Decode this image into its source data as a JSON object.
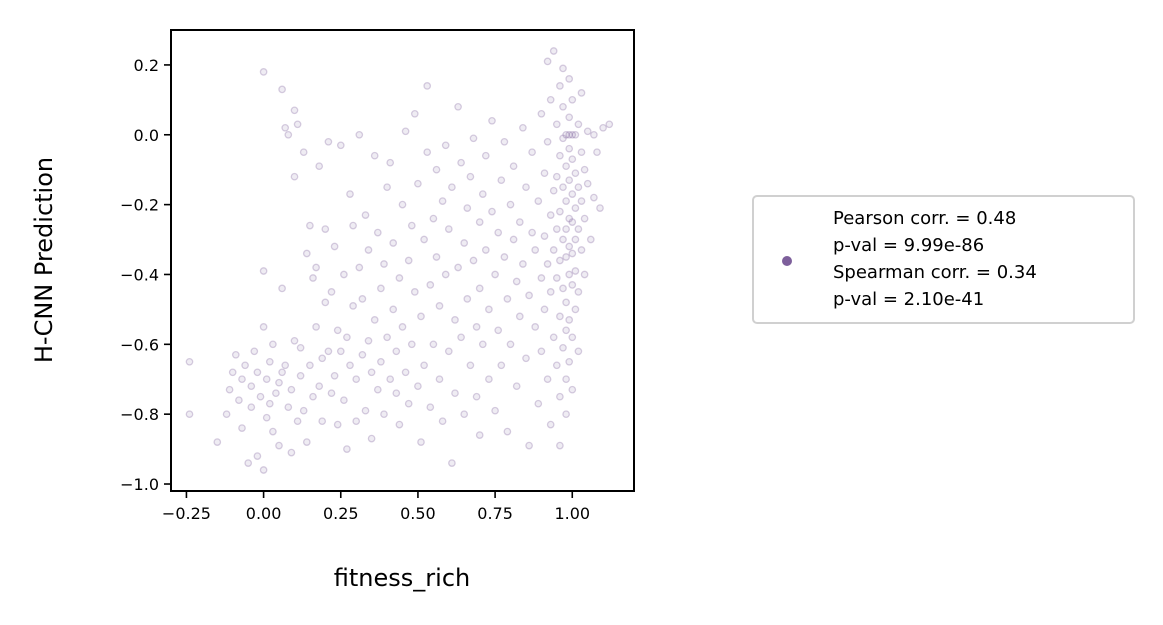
{
  "chart_data": {
    "type": "scatter",
    "title": "",
    "xlabel": "fitness_rich",
    "ylabel": "H-CNN Prediction",
    "xlim": [
      -0.3,
      1.2
    ],
    "ylim": [
      -1.02,
      0.3
    ],
    "xticks": [
      -0.25,
      0.0,
      0.25,
      0.5,
      0.75,
      1.0
    ],
    "xtick_labels": [
      "−0.25",
      "0.00",
      "0.25",
      "0.50",
      "0.75",
      "1.00"
    ],
    "yticks": [
      -1.0,
      -0.8,
      -0.6,
      -0.4,
      -0.2,
      0.0,
      0.2
    ],
    "ytick_labels": [
      "−1.0",
      "−0.8",
      "−0.6",
      "−0.4",
      "−0.2",
      "0.0",
      "0.2"
    ],
    "grid": false,
    "legend": {
      "placement": "right",
      "lines": [
        "Pearson corr. = 0.48",
        "p-val = 9.99e-86",
        "Spearman corr. = 0.34",
        "p-val = 2.10e-41"
      ]
    },
    "marker_color": "#7d5f9b",
    "marker_alpha": 0.2,
    "series": [
      {
        "points": [
          [
            -0.24,
            -0.65
          ],
          [
            -0.24,
            -0.8
          ],
          [
            -0.15,
            -0.88
          ],
          [
            -0.12,
            -0.8
          ],
          [
            -0.11,
            -0.73
          ],
          [
            -0.1,
            -0.68
          ],
          [
            -0.09,
            -0.63
          ],
          [
            -0.08,
            -0.76
          ],
          [
            -0.07,
            -0.7
          ],
          [
            -0.07,
            -0.84
          ],
          [
            -0.06,
            -0.66
          ],
          [
            -0.05,
            -0.94
          ],
          [
            -0.04,
            -0.72
          ],
          [
            -0.04,
            -0.78
          ],
          [
            -0.03,
            -0.62
          ],
          [
            -0.02,
            -0.68
          ],
          [
            -0.02,
            -0.92
          ],
          [
            -0.01,
            -0.75
          ],
          [
            0.0,
            -0.96
          ],
          [
            0.0,
            -0.55
          ],
          [
            0.0,
            -0.39
          ],
          [
            0.0,
            0.18
          ],
          [
            0.01,
            -0.81
          ],
          [
            0.01,
            -0.7
          ],
          [
            0.02,
            -0.65
          ],
          [
            0.02,
            -0.77
          ],
          [
            0.03,
            -0.85
          ],
          [
            0.03,
            -0.6
          ],
          [
            0.04,
            -0.74
          ],
          [
            0.05,
            -0.71
          ],
          [
            0.05,
            -0.89
          ],
          [
            0.06,
            -0.68
          ],
          [
            0.06,
            -0.44
          ],
          [
            0.06,
            0.13
          ],
          [
            0.07,
            -0.66
          ],
          [
            0.07,
            0.02
          ],
          [
            0.08,
            0.0
          ],
          [
            0.08,
            -0.78
          ],
          [
            0.09,
            -0.73
          ],
          [
            0.09,
            -0.91
          ],
          [
            0.1,
            -0.59
          ],
          [
            0.1,
            0.07
          ],
          [
            0.1,
            -0.12
          ],
          [
            0.11,
            -0.82
          ],
          [
            0.11,
            0.03
          ],
          [
            0.12,
            -0.69
          ],
          [
            0.12,
            -0.61
          ],
          [
            0.13,
            -0.05
          ],
          [
            0.13,
            -0.79
          ],
          [
            0.14,
            -0.34
          ],
          [
            0.14,
            -0.88
          ],
          [
            0.15,
            -0.66
          ],
          [
            0.15,
            -0.26
          ],
          [
            0.16,
            -0.75
          ],
          [
            0.16,
            -0.41
          ],
          [
            0.17,
            -0.55
          ],
          [
            0.17,
            -0.38
          ],
          [
            0.18,
            -0.72
          ],
          [
            0.18,
            -0.09
          ],
          [
            0.19,
            -0.82
          ],
          [
            0.19,
            -0.64
          ],
          [
            0.2,
            -0.27
          ],
          [
            0.2,
            -0.48
          ],
          [
            0.21,
            -0.62
          ],
          [
            0.21,
            -0.02
          ],
          [
            0.22,
            -0.74
          ],
          [
            0.22,
            -0.45
          ],
          [
            0.23,
            -0.32
          ],
          [
            0.23,
            -0.69
          ],
          [
            0.24,
            -0.56
          ],
          [
            0.24,
            -0.83
          ],
          [
            0.25,
            -0.03
          ],
          [
            0.25,
            -0.62
          ],
          [
            0.26,
            -0.76
          ],
          [
            0.26,
            -0.4
          ],
          [
            0.27,
            -0.58
          ],
          [
            0.27,
            -0.9
          ],
          [
            0.28,
            -0.17
          ],
          [
            0.28,
            -0.66
          ],
          [
            0.29,
            -0.49
          ],
          [
            0.29,
            -0.26
          ],
          [
            0.3,
            -0.7
          ],
          [
            0.3,
            -0.82
          ],
          [
            0.31,
            0.0
          ],
          [
            0.31,
            -0.38
          ],
          [
            0.32,
            -0.63
          ],
          [
            0.32,
            -0.47
          ],
          [
            0.33,
            -0.79
          ],
          [
            0.33,
            -0.23
          ],
          [
            0.34,
            -0.59
          ],
          [
            0.34,
            -0.33
          ],
          [
            0.35,
            -0.68
          ],
          [
            0.35,
            -0.87
          ],
          [
            0.36,
            -0.53
          ],
          [
            0.36,
            -0.06
          ],
          [
            0.37,
            -0.73
          ],
          [
            0.37,
            -0.28
          ],
          [
            0.38,
            -0.44
          ],
          [
            0.38,
            -0.65
          ],
          [
            0.39,
            -0.8
          ],
          [
            0.39,
            -0.37
          ],
          [
            0.4,
            -0.15
          ],
          [
            0.4,
            -0.58
          ],
          [
            0.41,
            -0.7
          ],
          [
            0.41,
            -0.08
          ],
          [
            0.42,
            -0.5
          ],
          [
            0.42,
            -0.31
          ],
          [
            0.43,
            -0.74
          ],
          [
            0.43,
            -0.62
          ],
          [
            0.44,
            -0.41
          ],
          [
            0.44,
            -0.83
          ],
          [
            0.45,
            -0.2
          ],
          [
            0.45,
            -0.55
          ],
          [
            0.46,
            0.01
          ],
          [
            0.46,
            -0.68
          ],
          [
            0.47,
            -0.36
          ],
          [
            0.47,
            -0.77
          ],
          [
            0.48,
            -0.26
          ],
          [
            0.48,
            -0.6
          ],
          [
            0.49,
            0.06
          ],
          [
            0.49,
            -0.45
          ],
          [
            0.5,
            -0.72
          ],
          [
            0.5,
            -0.14
          ],
          [
            0.51,
            -0.52
          ],
          [
            0.51,
            -0.88
          ],
          [
            0.52,
            -0.3
          ],
          [
            0.52,
            -0.66
          ],
          [
            0.53,
            0.14
          ],
          [
            0.53,
            -0.05
          ],
          [
            0.54,
            -0.43
          ],
          [
            0.54,
            -0.78
          ],
          [
            0.55,
            -0.24
          ],
          [
            0.55,
            -0.6
          ],
          [
            0.56,
            -0.1
          ],
          [
            0.56,
            -0.35
          ],
          [
            0.57,
            -0.7
          ],
          [
            0.57,
            -0.49
          ],
          [
            0.58,
            -0.19
          ],
          [
            0.58,
            -0.82
          ],
          [
            0.59,
            -0.03
          ],
          [
            0.59,
            -0.4
          ],
          [
            0.6,
            -0.62
          ],
          [
            0.6,
            -0.27
          ],
          [
            0.61,
            -0.94
          ],
          [
            0.61,
            -0.15
          ],
          [
            0.62,
            -0.53
          ],
          [
            0.62,
            -0.74
          ],
          [
            0.63,
            -0.38
          ],
          [
            0.63,
            0.08
          ],
          [
            0.64,
            -0.08
          ],
          [
            0.64,
            -0.58
          ],
          [
            0.65,
            -0.31
          ],
          [
            0.65,
            -0.8
          ],
          [
            0.66,
            -0.21
          ],
          [
            0.66,
            -0.47
          ],
          [
            0.67,
            -0.66
          ],
          [
            0.67,
            -0.12
          ],
          [
            0.68,
            -0.36
          ],
          [
            0.68,
            -0.01
          ],
          [
            0.69,
            -0.55
          ],
          [
            0.69,
            -0.75
          ],
          [
            0.7,
            -0.25
          ],
          [
            0.7,
            -0.44
          ],
          [
            0.7,
            -0.86
          ],
          [
            0.71,
            -0.17
          ],
          [
            0.71,
            -0.6
          ],
          [
            0.72,
            -0.06
          ],
          [
            0.72,
            -0.33
          ],
          [
            0.73,
            -0.5
          ],
          [
            0.73,
            -0.7
          ],
          [
            0.74,
            -0.22
          ],
          [
            0.74,
            0.04
          ],
          [
            0.75,
            -0.4
          ],
          [
            0.75,
            -0.79
          ],
          [
            0.76,
            -0.28
          ],
          [
            0.76,
            -0.56
          ],
          [
            0.77,
            -0.13
          ],
          [
            0.77,
            -0.66
          ],
          [
            0.78,
            -0.35
          ],
          [
            0.78,
            -0.02
          ],
          [
            0.79,
            -0.47
          ],
          [
            0.79,
            -0.85
          ],
          [
            0.8,
            -0.2
          ],
          [
            0.8,
            -0.6
          ],
          [
            0.81,
            -0.3
          ],
          [
            0.81,
            -0.09
          ],
          [
            0.82,
            -0.42
          ],
          [
            0.82,
            -0.72
          ],
          [
            0.83,
            -0.25
          ],
          [
            0.83,
            -0.52
          ],
          [
            0.84,
            0.02
          ],
          [
            0.84,
            -0.37
          ],
          [
            0.85,
            -0.15
          ],
          [
            0.85,
            -0.64
          ],
          [
            0.86,
            -0.46
          ],
          [
            0.86,
            -0.89
          ],
          [
            0.87,
            -0.28
          ],
          [
            0.87,
            -0.05
          ],
          [
            0.88,
            -0.55
          ],
          [
            0.88,
            -0.33
          ],
          [
            0.89,
            -0.77
          ],
          [
            0.89,
            -0.19
          ],
          [
            0.9,
            0.06
          ],
          [
            0.9,
            -0.41
          ],
          [
            0.9,
            -0.62
          ],
          [
            0.91,
            -0.11
          ],
          [
            0.91,
            -0.29
          ],
          [
            0.91,
            -0.5
          ],
          [
            0.92,
            0.21
          ],
          [
            0.92,
            -0.02
          ],
          [
            0.92,
            -0.37
          ],
          [
            0.92,
            -0.7
          ],
          [
            0.93,
            -0.23
          ],
          [
            0.93,
            -0.45
          ],
          [
            0.93,
            -0.83
          ],
          [
            0.93,
            0.1
          ],
          [
            0.94,
            -0.16
          ],
          [
            0.94,
            -0.33
          ],
          [
            0.94,
            -0.58
          ],
          [
            0.94,
            0.24
          ],
          [
            0.95,
            0.03
          ],
          [
            0.95,
            -0.27
          ],
          [
            0.95,
            -0.41
          ],
          [
            0.95,
            -0.66
          ],
          [
            0.95,
            -0.12
          ],
          [
            0.96,
            0.14
          ],
          [
            0.96,
            -0.06
          ],
          [
            0.96,
            -0.22
          ],
          [
            0.96,
            -0.36
          ],
          [
            0.96,
            -0.52
          ],
          [
            0.96,
            -0.75
          ],
          [
            0.96,
            -0.89
          ],
          [
            0.97,
            0.08
          ],
          [
            0.97,
            -0.01
          ],
          [
            0.97,
            -0.15
          ],
          [
            0.97,
            -0.3
          ],
          [
            0.97,
            -0.44
          ],
          [
            0.97,
            -0.61
          ],
          [
            0.97,
            0.19
          ],
          [
            0.98,
            0.0
          ],
          [
            0.98,
            -0.09
          ],
          [
            0.98,
            -0.19
          ],
          [
            0.98,
            -0.27
          ],
          [
            0.98,
            -0.35
          ],
          [
            0.98,
            -0.48
          ],
          [
            0.98,
            -0.56
          ],
          [
            0.98,
            -0.7
          ],
          [
            0.98,
            -0.8
          ],
          [
            0.99,
            0.0
          ],
          [
            0.99,
            0.05
          ],
          [
            0.99,
            -0.04
          ],
          [
            0.99,
            -0.13
          ],
          [
            0.99,
            -0.24
          ],
          [
            0.99,
            -0.32
          ],
          [
            0.99,
            -0.4
          ],
          [
            0.99,
            -0.53
          ],
          [
            0.99,
            -0.65
          ],
          [
            0.99,
            0.16
          ],
          [
            1.0,
            0.0
          ],
          [
            1.0,
            -0.07
          ],
          [
            1.0,
            -0.17
          ],
          [
            1.0,
            -0.25
          ],
          [
            1.0,
            -0.34
          ],
          [
            1.0,
            -0.43
          ],
          [
            1.0,
            -0.58
          ],
          [
            1.0,
            -0.73
          ],
          [
            1.0,
            0.1
          ],
          [
            1.01,
            0.0
          ],
          [
            1.01,
            -0.11
          ],
          [
            1.01,
            -0.21
          ],
          [
            1.01,
            -0.3
          ],
          [
            1.01,
            -0.39
          ],
          [
            1.01,
            -0.5
          ],
          [
            1.02,
            0.03
          ],
          [
            1.02,
            -0.15
          ],
          [
            1.02,
            -0.27
          ],
          [
            1.02,
            -0.45
          ],
          [
            1.02,
            -0.62
          ],
          [
            1.03,
            -0.05
          ],
          [
            1.03,
            -0.19
          ],
          [
            1.03,
            -0.33
          ],
          [
            1.03,
            0.12
          ],
          [
            1.04,
            -0.1
          ],
          [
            1.04,
            -0.24
          ],
          [
            1.04,
            -0.4
          ],
          [
            1.05,
            0.01
          ],
          [
            1.05,
            -0.14
          ],
          [
            1.06,
            -0.3
          ],
          [
            1.07,
            0.0
          ],
          [
            1.07,
            -0.18
          ],
          [
            1.08,
            -0.05
          ],
          [
            1.09,
            -0.21
          ],
          [
            1.1,
            0.02
          ],
          [
            1.12,
            0.03
          ]
        ]
      }
    ]
  }
}
